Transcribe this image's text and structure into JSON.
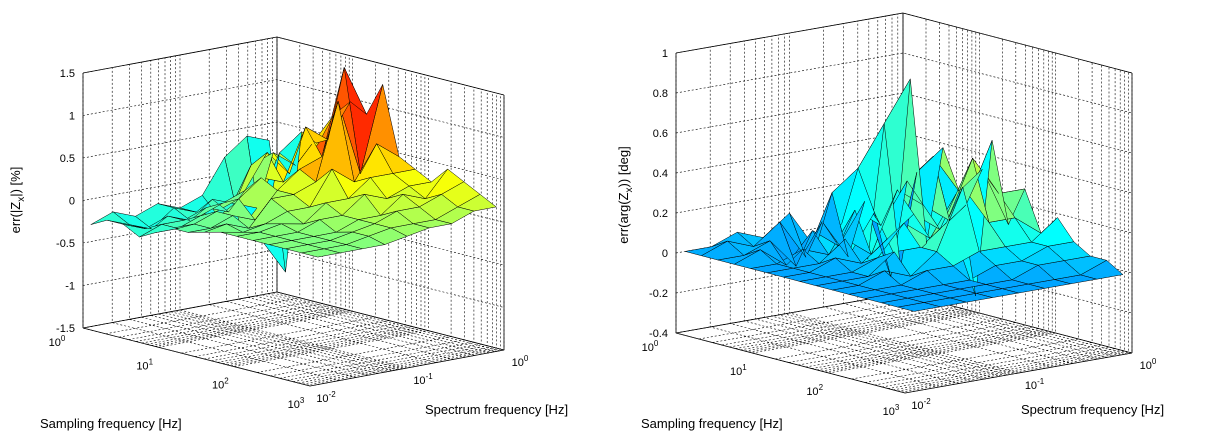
{
  "chart_data": [
    {
      "type": "surface",
      "zlabel_prefix": "err(|Z",
      "zlabel_sub": "x",
      "zlabel_suffix": "|) [%]",
      "xlabel": "Sampling frequency [Hz]",
      "ylabel": "Spectrum frequency [Hz]",
      "zlim": [
        -1.5,
        1.5
      ],
      "z_ticks": [
        "1.5",
        "1",
        "0.5",
        "0",
        "-0.5",
        "-1",
        "-1.5"
      ],
      "x_ticks": [
        {
          "base": "10",
          "exp": "0"
        },
        {
          "base": "10",
          "exp": "1"
        },
        {
          "base": "10",
          "exp": "2"
        },
        {
          "base": "10",
          "exp": "3"
        }
      ],
      "y_ticks": [
        {
          "base": "10",
          "exp": "-2"
        },
        {
          "base": "10",
          "exp": "-1"
        },
        {
          "base": "10",
          "exp": "0"
        }
      ],
      "x_range_log10": [
        0,
        3
      ],
      "y_range_log10": [
        -2,
        0
      ],
      "colormap": "jet",
      "grid": true,
      "z_rows": [
        [
          0.3,
          -1.2,
          0.5,
          0.4,
          0.8,
          1.0,
          0.9,
          1.3,
          0.5,
          0.4,
          0.3,
          0.5,
          0.4,
          0.3,
          0.2
        ],
        [
          0.4,
          -0.8,
          0.3,
          0.2,
          0.5,
          0.6,
          1.5,
          0.3,
          0.7,
          0.4,
          0.3,
          0.2,
          0.3,
          0.2,
          0.2
        ],
        [
          0.2,
          -0.6,
          -0.3,
          0.4,
          0.2,
          0.8,
          0.5,
          1.2,
          0.3,
          0.4,
          0.2,
          0.3,
          0.2,
          0.1,
          0.1
        ],
        [
          -0.2,
          -0.4,
          -0.2,
          0.3,
          0.5,
          0.2,
          0.4,
          0.3,
          0.5,
          0.2,
          0.3,
          0.1,
          0.2,
          0.1,
          0.1
        ],
        [
          -0.3,
          -0.3,
          -0.1,
          -0.2,
          0.1,
          0.3,
          0.2,
          0.2,
          0.1,
          0.2,
          0.1,
          0.1,
          0.1,
          0.1,
          0.05
        ],
        [
          -0.2,
          -0.2,
          -0.3,
          -0.1,
          0.0,
          0.1,
          -0.1,
          0.2,
          0.1,
          0.0,
          0.1,
          0.0,
          0.05,
          0.05,
          0.0
        ],
        [
          -0.3,
          -0.4,
          -0.2,
          -0.2,
          -0.1,
          0.0,
          0.0,
          -0.1,
          0.0,
          0.05,
          0.0,
          0.0,
          0.0,
          0.0,
          0.0
        ],
        [
          -0.2,
          -0.3,
          -0.3,
          -0.2,
          -0.2,
          -0.1,
          -0.1,
          0.0,
          -0.05,
          0.0,
          0.0,
          0.0,
          0.0,
          0.0,
          0.0
        ],
        [
          -0.3,
          -0.2,
          -0.2,
          -0.3,
          -0.2,
          -0.1,
          -0.1,
          -0.05,
          0.0,
          0.0,
          0.0,
          0.0,
          0.0,
          0.0,
          0.0
        ]
      ]
    },
    {
      "type": "surface",
      "zlabel_prefix": "err(arg(Z",
      "zlabel_sub": "x",
      "zlabel_suffix": ")) [deg]",
      "xlabel": "Sampling frequency [Hz]",
      "ylabel": "Spectrum frequency [Hz]",
      "zlim": [
        -0.4,
        1.0
      ],
      "z_ticks": [
        "1",
        "0.8",
        "0.6",
        "0.4",
        "0.2",
        "0",
        "-0.2",
        "-0.4"
      ],
      "x_ticks": [
        {
          "base": "10",
          "exp": "0"
        },
        {
          "base": "10",
          "exp": "1"
        },
        {
          "base": "10",
          "exp": "2"
        },
        {
          "base": "10",
          "exp": "3"
        }
      ],
      "y_ticks": [
        {
          "base": "10",
          "exp": "-2"
        },
        {
          "base": "10",
          "exp": "-1"
        },
        {
          "base": "10",
          "exp": "0"
        }
      ],
      "x_range_log10": [
        0,
        3
      ],
      "y_range_log10": [
        -2,
        0
      ],
      "colormap": "jet",
      "grid": true,
      "z_rows": [
        [
          -0.25,
          0.7,
          -0.1,
          0.4,
          0.2,
          -0.3,
          0.5,
          0.1,
          0.3,
          0.1,
          0.2,
          0.1,
          0.05,
          0.05,
          0.0
        ],
        [
          -0.2,
          0.5,
          -0.2,
          0.3,
          0.4,
          0.1,
          0.2,
          0.4,
          0.3,
          0.2,
          0.1,
          0.1,
          0.05,
          0.0,
          0.0
        ],
        [
          0.0,
          0.3,
          0.1,
          -0.2,
          0.3,
          0.2,
          0.1,
          0.3,
          0.5,
          0.2,
          0.1,
          0.05,
          0.05,
          0.0,
          0.0
        ],
        [
          -0.1,
          0.2,
          -0.1,
          0.2,
          0.1,
          0.3,
          0.2,
          0.1,
          0.2,
          0.4,
          0.1,
          0.05,
          0.0,
          0.0,
          0.0
        ],
        [
          0.1,
          -0.1,
          0.1,
          0.0,
          0.2,
          0.0,
          0.1,
          0.2,
          0.1,
          0.1,
          0.05,
          0.0,
          0.0,
          0.0,
          0.0
        ],
        [
          0.0,
          0.1,
          -0.1,
          0.1,
          0.0,
          0.1,
          0.0,
          0.05,
          0.1,
          0.0,
          0.05,
          0.0,
          0.0,
          0.0,
          0.0
        ],
        [
          0.05,
          0.0,
          0.05,
          -0.05,
          0.05,
          0.0,
          0.05,
          0.0,
          0.0,
          0.05,
          0.0,
          0.0,
          0.0,
          0.0,
          0.0
        ],
        [
          0.0,
          0.05,
          0.0,
          0.05,
          0.0,
          0.0,
          0.0,
          0.0,
          0.0,
          0.0,
          0.0,
          0.0,
          0.0,
          0.0,
          0.0
        ],
        [
          0.0,
          0.0,
          0.0,
          0.0,
          0.0,
          0.0,
          0.0,
          0.0,
          0.0,
          0.0,
          0.0,
          0.0,
          0.0,
          0.0,
          0.0
        ]
      ]
    }
  ]
}
